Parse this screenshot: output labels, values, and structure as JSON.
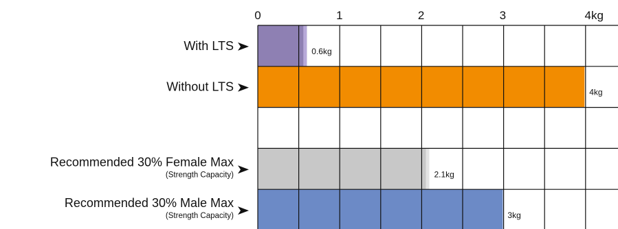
{
  "chart_data": {
    "type": "bar",
    "orientation": "horizontal",
    "title": "",
    "xlabel": "",
    "ylabel": "",
    "x_ticks": [
      "0",
      "1",
      "2",
      "3",
      "4kg"
    ],
    "xlim": [
      0,
      4.1
    ],
    "grid": true,
    "legend": "none",
    "rows": [
      {
        "label": "With LTS",
        "sublabel": "",
        "value": 0.6,
        "value_label": "0.6kg",
        "color": "#8e80b3",
        "marker_color": "#b7a9d9"
      },
      {
        "label": "Without LTS",
        "sublabel": "",
        "value": 4,
        "value_label": "4kg",
        "color": "#f28c00",
        "marker_color": "#f28c00"
      },
      {
        "label": "",
        "sublabel": "",
        "value": null,
        "value_label": "",
        "color": "",
        "marker_color": ""
      },
      {
        "label": "Recommended 30% Female Max",
        "sublabel": "(Strength Capacity)",
        "value": 2.1,
        "value_label": "2.1kg",
        "color": "#c8c8c8",
        "marker_color": "#e3e3e3"
      },
      {
        "label": "Recommended 30% Male Max",
        "sublabel": "(Strength Capacity)",
        "value": 3,
        "value_label": "3kg",
        "color": "#6c8ac6",
        "marker_color": "#6c8ac6"
      }
    ]
  }
}
